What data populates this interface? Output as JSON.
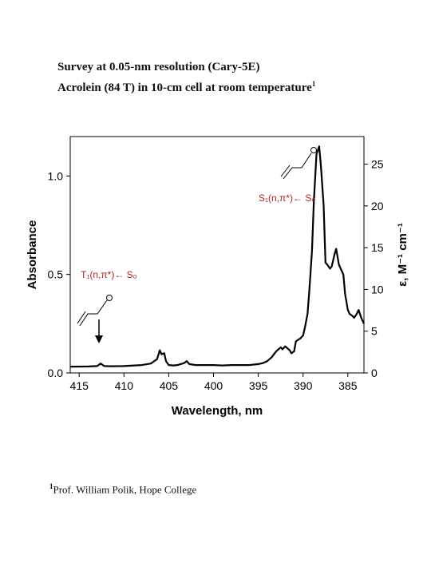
{
  "header": {
    "line1": "Survey at 0.05-nm resolution (Cary-5E)",
    "line2": "Acrolein (84 T) in 10-cm cell at room temperature",
    "line2_sup": "1"
  },
  "footnote": {
    "sup": "1",
    "text": "Prof. William Polik, Hope College"
  },
  "chart_data": {
    "type": "line",
    "xlabel": "Wavelength, nm",
    "ylabel": "Absorbance",
    "y2label": "ε, M⁻¹ cm⁻¹",
    "xlim": [
      416,
      383.2
    ],
    "ylim": [
      0,
      1.2
    ],
    "y2lim": [
      0,
      28.3
    ],
    "x_ticks": [
      "415",
      "410",
      "405",
      "400",
      "395",
      "390",
      "385"
    ],
    "x_tick_values": [
      415,
      410,
      405,
      400,
      395,
      390,
      385
    ],
    "y_ticks": [
      "0.0",
      "0.5",
      "1.0"
    ],
    "y_tick_values": [
      0,
      0.5,
      1.0
    ],
    "y2_ticks": [
      "0",
      "5",
      "10",
      "15",
      "20",
      "25"
    ],
    "y2_tick_values": [
      0,
      5,
      10,
      15,
      20,
      25
    ],
    "annotations": [
      {
        "text": "S₁(n,π*)← S₀",
        "color": "#b22222"
      },
      {
        "text": "T₁(n,π*)← S₀",
        "color": "#b22222"
      }
    ],
    "series": [
      {
        "color": "#000000",
        "x": [
          416,
          414,
          413,
          412.6,
          412.2,
          411.5,
          410,
          408,
          407,
          406.3,
          406.0,
          405.8,
          405.5,
          405.3,
          405.0,
          404.5,
          404,
          403.3,
          403.0,
          402.7,
          402,
          401,
          400,
          399,
          398,
          397,
          396,
          395,
          394.5,
          394,
          393.5,
          393,
          392.5,
          392.3,
          392,
          391.5,
          391.3,
          391,
          390.8,
          390.5,
          390.3,
          390.0,
          389.8,
          389.5,
          389.3,
          389.0,
          388.8,
          388.5,
          388.2,
          388.0,
          387.7,
          387.5,
          387.3,
          387.0,
          386.8,
          386.5,
          386.3,
          386.0,
          385.8,
          385.5,
          385.3,
          385.0,
          384.8,
          384.5,
          384.3,
          384.0,
          383.8,
          383.5,
          383.2
        ],
        "y": [
          0.032,
          0.033,
          0.035,
          0.048,
          0.035,
          0.034,
          0.035,
          0.04,
          0.048,
          0.07,
          0.115,
          0.095,
          0.1,
          0.06,
          0.04,
          0.038,
          0.04,
          0.05,
          0.06,
          0.045,
          0.04,
          0.04,
          0.04,
          0.038,
          0.04,
          0.04,
          0.04,
          0.045,
          0.05,
          0.06,
          0.08,
          0.11,
          0.13,
          0.12,
          0.135,
          0.115,
          0.1,
          0.11,
          0.16,
          0.17,
          0.175,
          0.19,
          0.23,
          0.3,
          0.42,
          0.62,
          0.87,
          1.11,
          1.15,
          1.05,
          0.85,
          0.56,
          0.55,
          0.53,
          0.54,
          0.6,
          0.63,
          0.55,
          0.53,
          0.5,
          0.4,
          0.32,
          0.3,
          0.29,
          0.28,
          0.3,
          0.32,
          0.28,
          0.25
        ]
      }
    ]
  }
}
